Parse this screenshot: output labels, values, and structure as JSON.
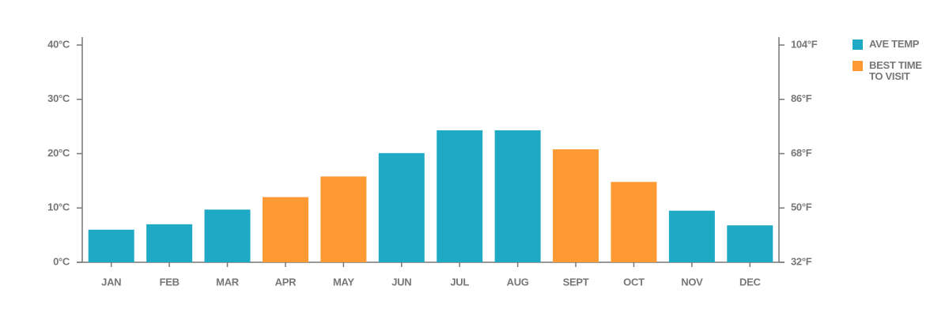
{
  "chart_data": {
    "type": "bar",
    "categories": [
      "JAN",
      "FEB",
      "MAR",
      "APR",
      "MAY",
      "JUN",
      "JUL",
      "AUG",
      "SEPT",
      "OCT",
      "NOV",
      "DEC"
    ],
    "series": [
      {
        "name": "AVE TEMP",
        "color": "#1eaac5",
        "values": [
          6,
          7,
          9.7,
          null,
          null,
          20.1,
          24.3,
          24.3,
          null,
          null,
          9.5,
          6.8
        ]
      },
      {
        "name": "BEST TIME TO VISIT",
        "color": "#fd9a33",
        "values": [
          null,
          null,
          null,
          12,
          15.8,
          null,
          null,
          null,
          20.8,
          14.8,
          null,
          null
        ]
      }
    ],
    "ylim": [
      0,
      40
    ],
    "yticks": [
      {
        "value": 0,
        "label": "0°C"
      },
      {
        "value": 10,
        "label": "10°C"
      },
      {
        "value": 20,
        "label": "20°C"
      },
      {
        "value": 30,
        "label": "30°C"
      },
      {
        "value": 40,
        "label": "40°C"
      }
    ],
    "y2lim": [
      32,
      104
    ],
    "y2ticks": [
      {
        "value": 32,
        "label": "32°F"
      },
      {
        "value": 50,
        "label": "50°F"
      },
      {
        "value": 68,
        "label": "68°F"
      },
      {
        "value": 86,
        "label": "86°F"
      },
      {
        "value": 104,
        "label": "104°F"
      }
    ],
    "grid": false
  }
}
